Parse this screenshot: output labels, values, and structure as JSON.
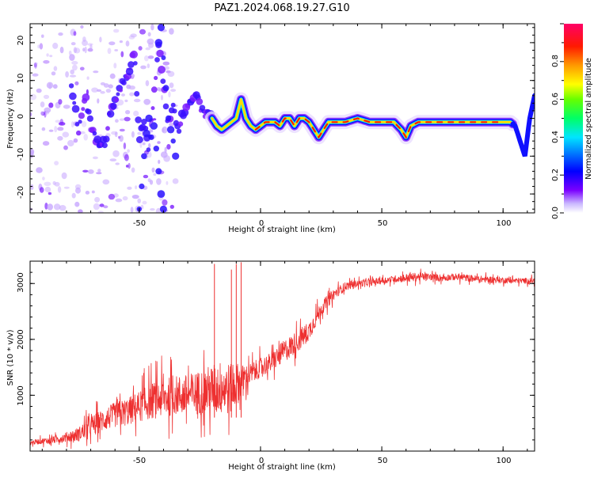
{
  "title": "PAZ1.2024.068.19.27.G10",
  "charts": {
    "spectrogram": {
      "xlabel": "Height of straight line (km)",
      "ylabel": "Frequency (Hz)",
      "xticks": [
        "-50",
        "0",
        "50",
        "100"
      ],
      "yticks": [
        "20",
        "10",
        "0",
        "-10",
        "-20"
      ]
    },
    "colorbar": {
      "label": "Normalized spectral amplitude",
      "ticks": [
        "0.0",
        "0.2",
        "0.4",
        "0.6",
        "0.8"
      ]
    },
    "snr": {
      "xlabel": "Height of straight line (km)",
      "ylabel": "SNR (10 * v/v)",
      "xticks": [
        "-50",
        "0",
        "50",
        "100"
      ],
      "yticks": [
        "3000",
        "2000",
        "1000"
      ],
      "color": "#ee3030"
    }
  },
  "chart_data": [
    {
      "type": "heatmap",
      "title": "PAZ1.2024.068.19.27.G10",
      "xlabel": "Height of straight line (km)",
      "ylabel": "Frequency (Hz)",
      "xlim": [
        -95,
        113
      ],
      "ylim": [
        -25,
        25
      ],
      "colorbar_label": "Normalized spectral amplitude",
      "colorbar_range": [
        0,
        1
      ],
      "ridge": {
        "x": [
          -95,
          -90,
          -85,
          -80,
          -75,
          -72,
          -70,
          -68,
          -66,
          -64,
          -62,
          -60,
          -58,
          -56,
          -54,
          -52,
          -50,
          -48,
          -46,
          -44,
          -42,
          -40,
          -38,
          -36,
          -34,
          -32,
          -30,
          -28,
          -26,
          -24,
          -22,
          -20,
          -18,
          -16,
          -14,
          -12,
          -10,
          -8,
          -6,
          -4,
          -2,
          0,
          2,
          4,
          6,
          8,
          10,
          12,
          14,
          16,
          18,
          20,
          22,
          24,
          26,
          28,
          30,
          35,
          40,
          45,
          50,
          55,
          58,
          60,
          62,
          65,
          70,
          75,
          80,
          85,
          90,
          95,
          100,
          103,
          105,
          107,
          109,
          111,
          113
        ],
        "y": [
          -14,
          -5,
          22,
          16,
          -3,
          5,
          -2,
          -5,
          -8,
          -6,
          2,
          5,
          8,
          10,
          12,
          18,
          -5,
          -2,
          -8,
          5,
          20,
          10,
          -2,
          4,
          -3,
          1,
          3,
          5,
          6,
          2,
          1,
          0,
          -2,
          -3,
          -2,
          -1,
          0,
          5,
          0,
          -2,
          -3,
          -2,
          -1,
          -1,
          -1,
          -2,
          0,
          0,
          -2,
          0,
          0,
          -1,
          -3,
          -5,
          -3,
          -1,
          -1,
          -1,
          0,
          -1,
          -1,
          -1,
          -3,
          -5,
          -2,
          -1,
          -1,
          -1,
          -1,
          -1,
          -1,
          -1,
          -1,
          -1,
          -2,
          -6,
          -10,
          0,
          6
        ]
      }
    },
    {
      "type": "line",
      "title": "",
      "xlabel": "Height of straight line (km)",
      "ylabel": "SNR (10 * v/v)",
      "xlim": [
        -95,
        113
      ],
      "ylim": [
        0,
        3400
      ],
      "series": [
        {
          "x": [
            -95,
            -90,
            -85,
            -80,
            -75,
            -70,
            -65,
            -60,
            -55,
            -50,
            -45,
            -40,
            -35,
            -30,
            -25,
            -20,
            -15,
            -12,
            -10,
            -8,
            -5,
            0,
            5,
            10,
            15,
            20,
            25,
            30,
            35,
            40,
            45,
            50,
            55,
            60,
            65,
            70,
            75,
            80,
            85,
            90,
            95,
            100,
            105,
            110,
            113
          ],
          "values": [
            150,
            180,
            200,
            250,
            300,
            450,
            550,
            650,
            700,
            800,
            900,
            950,
            1000,
            1000,
            1050,
            1100,
            1150,
            1100,
            1200,
            1250,
            1350,
            1500,
            1600,
            1800,
            1950,
            2150,
            2550,
            2800,
            2950,
            3000,
            3020,
            3050,
            3080,
            3100,
            3120,
            3120,
            3100,
            3120,
            3100,
            3080,
            3070,
            3060,
            3050,
            3050,
            3050
          ],
          "spread": [
            80,
            100,
            120,
            180,
            250,
            350,
            400,
            450,
            500,
            550,
            650,
            700,
            700,
            750,
            800,
            900,
            1000,
            900,
            800,
            600,
            400,
            350,
            350,
            400,
            400,
            350,
            250,
            200,
            150,
            120,
            120,
            120,
            120,
            150,
            150,
            120,
            120,
            120,
            120,
            120,
            120,
            110,
            100,
            100,
            100
          ],
          "spikes": [
            [
              -19,
              3350
            ],
            [
              -12,
              3250
            ],
            [
              -10,
              3350
            ],
            [
              -8,
              3380
            ]
          ]
        }
      ]
    }
  ]
}
